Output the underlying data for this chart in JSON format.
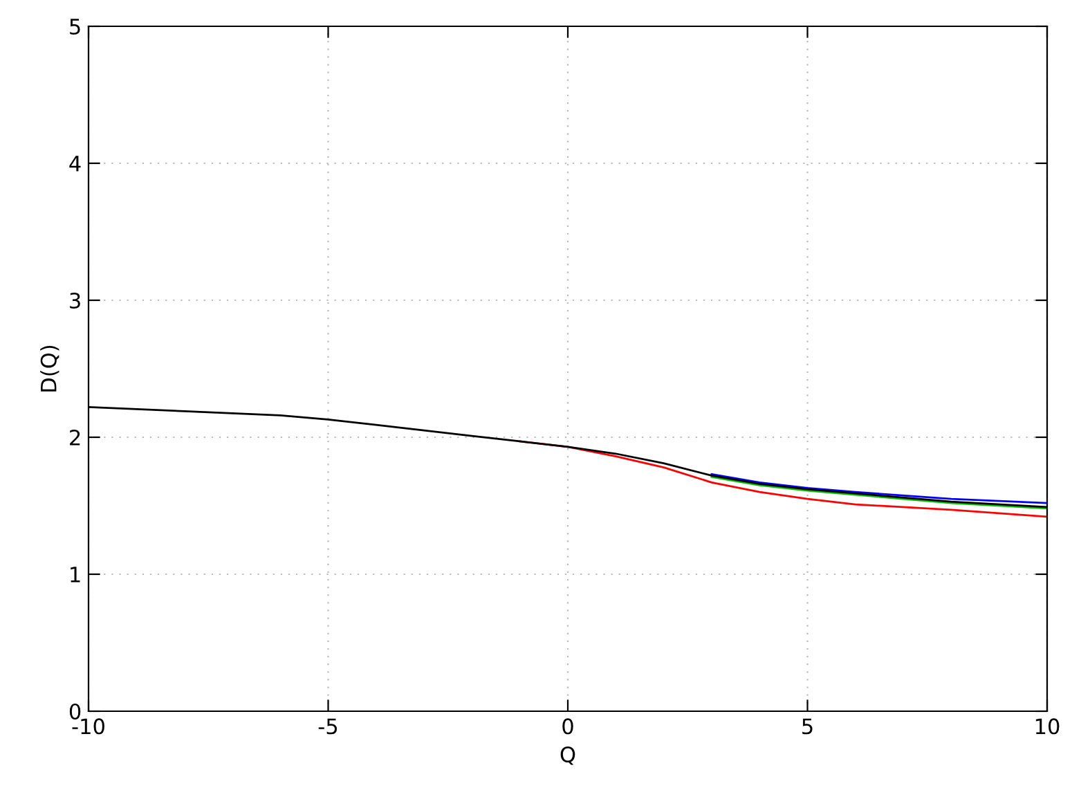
{
  "chart_data": {
    "type": "line",
    "xlabel": "Q",
    "ylabel": "D(Q)",
    "x": [
      -10,
      -8,
      -6,
      -5,
      -4,
      -3,
      -2,
      -1,
      0,
      1,
      2,
      3,
      4,
      5,
      6,
      8,
      10
    ],
    "series": [
      {
        "color": "#ff0000",
        "values": [
          null,
          null,
          null,
          null,
          null,
          null,
          null,
          1.97,
          1.93,
          1.86,
          1.78,
          1.67,
          1.6,
          1.55,
          1.51,
          1.47,
          1.42
        ]
      },
      {
        "color": "#00c000",
        "values": [
          null,
          null,
          null,
          null,
          null,
          null,
          null,
          null,
          null,
          null,
          null,
          1.71,
          1.65,
          1.61,
          1.58,
          1.52,
          1.48
        ]
      },
      {
        "color": "#0000ff",
        "values": [
          null,
          null,
          null,
          null,
          null,
          null,
          null,
          null,
          null,
          null,
          null,
          1.73,
          1.67,
          1.63,
          1.6,
          1.55,
          1.52
        ]
      },
      {
        "color": "#000000",
        "values": [
          2.22,
          2.19,
          2.16,
          2.13,
          2.09,
          2.05,
          2.01,
          1.97,
          1.93,
          1.88,
          1.81,
          1.72,
          1.66,
          1.62,
          1.59,
          1.53,
          1.49
        ]
      }
    ],
    "xlim": [
      -10,
      10
    ],
    "xticks": [
      -10,
      -5,
      0,
      5,
      10
    ],
    "ylim": [
      0,
      5
    ],
    "yticks": [
      0,
      1,
      2,
      3,
      4,
      5
    ],
    "grid": true,
    "line_style": "solid",
    "marker": "none"
  }
}
